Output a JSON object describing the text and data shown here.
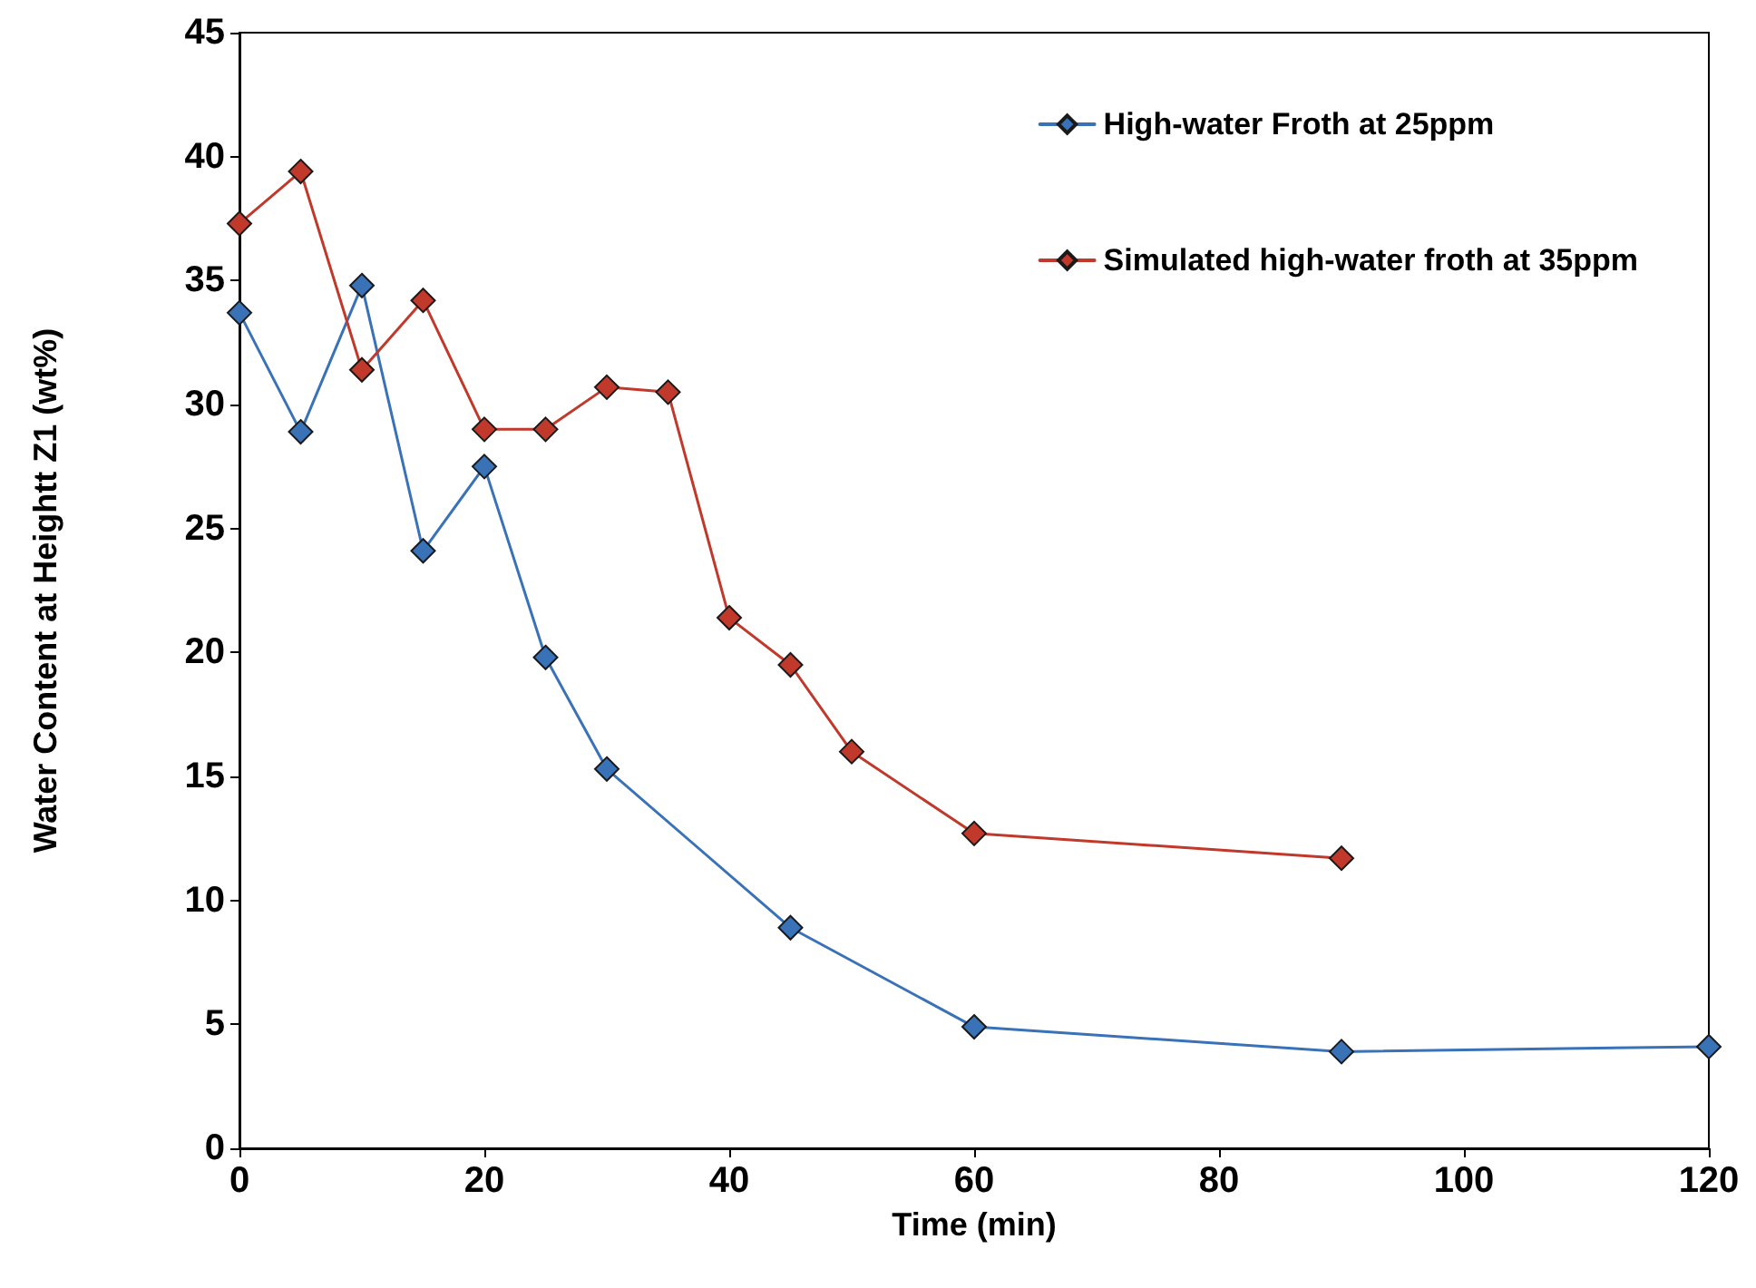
{
  "chart_data": {
    "type": "line",
    "xlabel": "Time (min)",
    "ylabel": "Water Content at Heightt Z1 (wt%)",
    "xlim": [
      0,
      120
    ],
    "xticks": [
      0,
      20,
      40,
      60,
      80,
      100,
      120
    ],
    "ylim": [
      0,
      45
    ],
    "yticks": [
      0,
      5,
      10,
      15,
      20,
      25,
      30,
      35,
      40,
      45
    ],
    "grid": false,
    "legend": "top right",
    "marker": "diamond",
    "line_style": "solid",
    "series": [
      {
        "name": "High-water Froth at 25ppm",
        "color": "#3a72b8",
        "x": [
          0,
          5,
          10,
          15,
          20,
          25,
          30,
          45,
          60,
          90,
          120
        ],
        "values": [
          33.7,
          28.9,
          34.8,
          24.1,
          27.5,
          19.8,
          15.3,
          8.9,
          4.9,
          3.9,
          4.1
        ]
      },
      {
        "name": "Simulated high-water froth at 35ppm",
        "color": "#c0392b",
        "x": [
          0,
          5,
          10,
          15,
          20,
          25,
          30,
          35,
          40,
          45,
          50,
          60,
          90
        ],
        "values": [
          37.3,
          39.4,
          31.4,
          34.2,
          29.0,
          29.0,
          30.7,
          30.5,
          21.4,
          19.5,
          16.0,
          12.7,
          11.7
        ]
      }
    ]
  }
}
